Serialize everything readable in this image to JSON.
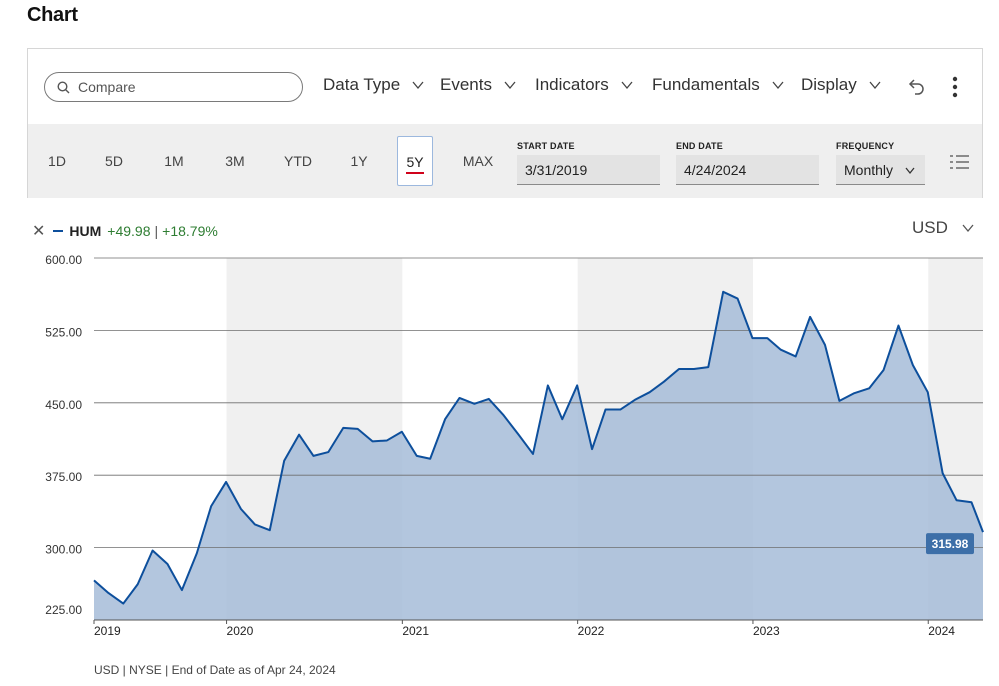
{
  "page": {
    "title": "Chart"
  },
  "toolbar": {
    "compare_placeholder": "Compare",
    "menus": [
      "Data Type",
      "Events",
      "Indicators",
      "Fundamentals",
      "Display"
    ]
  },
  "ranges": {
    "buttons": [
      "1D",
      "5D",
      "1M",
      "3M",
      "YTD",
      "1Y",
      "5Y",
      "MAX"
    ],
    "active": "5Y",
    "start_label": "START DATE",
    "start_value": "3/31/2019",
    "end_label": "END DATE",
    "end_value": "4/24/2024",
    "frequency_label": "FREQUENCY",
    "frequency_value": "Monthly"
  },
  "legend": {
    "ticker": "HUM",
    "change": "+49.98",
    "change_pct": "+18.79%",
    "separator": "|",
    "currency": "USD"
  },
  "colors": {
    "line": "#0d4f9c",
    "area": "#a6bcd8",
    "positive": "#2e7d32",
    "accent_underline": "#d0021b",
    "label_bg": "#3d6fa8"
  },
  "footer": {
    "note": "USD | NYSE | End of Date as of Apr 24, 2024"
  },
  "chart_data": {
    "type": "area",
    "ylim": [
      225,
      600
    ],
    "yticks": [
      600,
      525,
      450,
      375,
      300,
      225
    ],
    "ytick_labels": [
      "600.00",
      "525.00",
      "450.00",
      "375.00",
      "300.00",
      "225.00"
    ],
    "xtick_labels": [
      "2019",
      "2020",
      "2021",
      "2022",
      "2023",
      "2024"
    ],
    "last_label": "315.98",
    "shaded_years": [
      "2020",
      "2022",
      "2024"
    ],
    "series": [
      {
        "name": "HUM",
        "x": [
          "2019-03-31",
          "2019-04-30",
          "2019-05-31",
          "2019-06-30",
          "2019-07-31",
          "2019-08-31",
          "2019-09-30",
          "2019-10-31",
          "2019-11-30",
          "2019-12-31",
          "2020-01-31",
          "2020-02-29",
          "2020-03-31",
          "2020-04-30",
          "2020-05-31",
          "2020-06-30",
          "2020-07-31",
          "2020-08-31",
          "2020-09-30",
          "2020-10-31",
          "2020-11-30",
          "2020-12-31",
          "2021-01-31",
          "2021-02-28",
          "2021-03-31",
          "2021-04-30",
          "2021-05-31",
          "2021-06-30",
          "2021-07-31",
          "2021-08-31",
          "2021-09-30",
          "2021-10-31",
          "2021-11-30",
          "2021-12-31",
          "2022-01-31",
          "2022-02-28",
          "2022-03-31",
          "2022-04-30",
          "2022-05-31",
          "2022-06-30",
          "2022-07-31",
          "2022-08-31",
          "2022-09-30",
          "2022-10-31",
          "2022-11-30",
          "2022-12-31",
          "2023-01-31",
          "2023-02-28",
          "2023-03-31",
          "2023-04-30",
          "2023-05-31",
          "2023-06-30",
          "2023-07-31",
          "2023-08-31",
          "2023-09-30",
          "2023-10-31",
          "2023-11-30",
          "2023-12-31",
          "2024-01-31",
          "2024-02-29",
          "2024-03-31",
          "2024-04-24"
        ],
        "values": [
          266,
          253,
          242,
          262,
          297,
          283,
          256,
          294,
          343,
          368,
          340,
          324,
          318,
          390,
          417,
          395,
          399,
          424,
          423,
          410,
          411,
          420,
          395,
          392,
          433,
          455,
          449,
          454,
          437,
          417,
          397,
          468,
          433,
          468,
          402,
          443,
          443,
          453,
          461,
          472,
          485,
          485,
          487,
          565,
          558,
          517,
          517,
          505,
          498,
          539,
          510,
          452,
          460,
          465,
          484,
          530,
          489,
          461,
          377,
          349,
          347,
          316
        ]
      }
    ]
  }
}
